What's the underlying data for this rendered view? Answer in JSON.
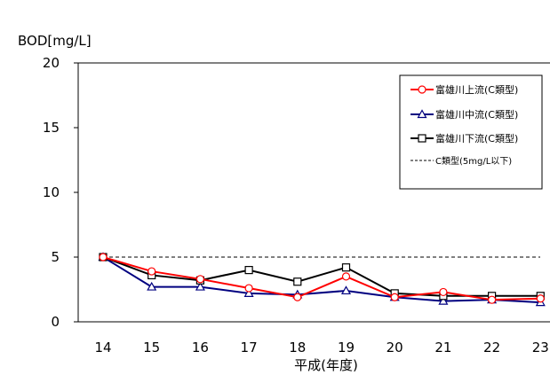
{
  "chart_data": {
    "type": "line",
    "title": "",
    "ylabel": "BOD[mg/L]",
    "xlabel": "平成(年度)",
    "categories": [
      "14",
      "15",
      "16",
      "17",
      "18",
      "19",
      "20",
      "21",
      "22",
      "23"
    ],
    "ylim": [
      0,
      20
    ],
    "yticks": [
      0,
      5,
      10,
      15,
      20
    ],
    "grid": false,
    "legend_position": "top-right",
    "series": [
      {
        "name": "富雄川上流(C類型)",
        "color": "#ff0000",
        "marker": "circle",
        "values": [
          5.0,
          3.9,
          3.3,
          2.6,
          1.9,
          3.5,
          1.9,
          2.3,
          1.7,
          1.8
        ]
      },
      {
        "name": "富雄川中流(C類型)",
        "color": "#000080",
        "marker": "triangle",
        "values": [
          5.0,
          2.7,
          2.7,
          2.2,
          2.1,
          2.4,
          1.9,
          1.6,
          1.7,
          1.5
        ]
      },
      {
        "name": "富雄川下流(C類型)",
        "color": "#000000",
        "marker": "square",
        "values": [
          5.0,
          3.6,
          3.2,
          4.0,
          3.1,
          4.2,
          2.2,
          2.0,
          2.0,
          2.0
        ]
      }
    ],
    "reference_line": {
      "name": "C類型(5mg/L以下)",
      "value": 5,
      "color": "#000000",
      "style": "dashed"
    }
  }
}
